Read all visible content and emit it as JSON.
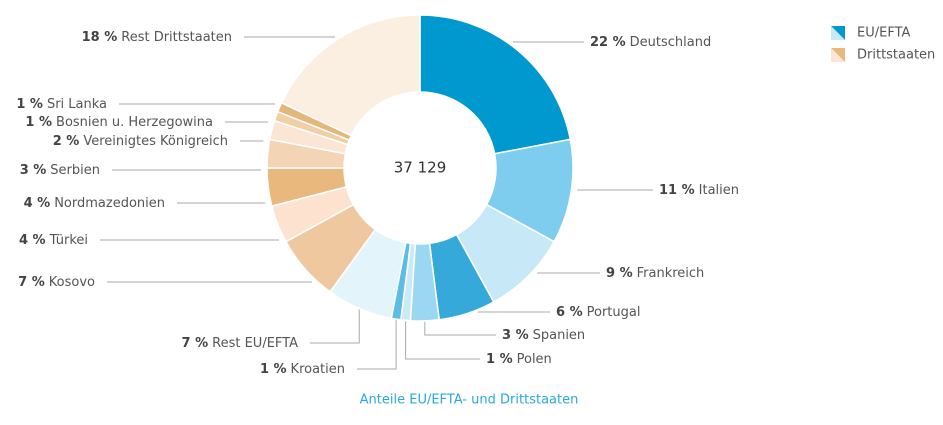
{
  "chart_data": {
    "type": "donut",
    "center_label": "37 129",
    "caption": "Anteile EU/EFTA- und Drittstaaten",
    "categories": [
      "Deutschland",
      "Italien",
      "Frankreich",
      "Portugal",
      "Spanien",
      "Polen",
      "Kroatien",
      "Rest EU/EFTA",
      "Kosovo",
      "Türkei",
      "Nordmazedonien",
      "Serbien",
      "Vereinigtes Königreich",
      "Bosnien u. Herzegowina",
      "Sri Lanka",
      "Rest Drittstaaten"
    ],
    "values": [
      22,
      11,
      9,
      6,
      3,
      1,
      1,
      7,
      7,
      4,
      4,
      3,
      2,
      1,
      1,
      18
    ],
    "value_labels": [
      "22 %",
      "11 %",
      "9 %",
      "6 %",
      "3 %",
      "1 %",
      "1 %",
      "7 %",
      "7 %",
      "4 %",
      "4 %",
      "3 %",
      "2 %",
      "1 %",
      "1 %",
      "18 %"
    ],
    "colors": [
      "#0099cf",
      "#7fcdee",
      "#c7e9f7",
      "#35a9d9",
      "#9bd7f2",
      "#cbeaf8",
      "#5bbde6",
      "#e4f4fb",
      "#f0c8a0",
      "#fde3cf",
      "#e8b87c",
      "#f3d5b5",
      "#fbe6d6",
      "#f1cfa5",
      "#e4b67a",
      "#fbefe2"
    ],
    "legend": [
      {
        "name": "EU/EFTA",
        "color": "#0099cf",
        "light": "#c7e9f7"
      },
      {
        "name": "Drittstaaten",
        "color": "#e8b87c",
        "light": "#fbe6d6"
      }
    ]
  }
}
